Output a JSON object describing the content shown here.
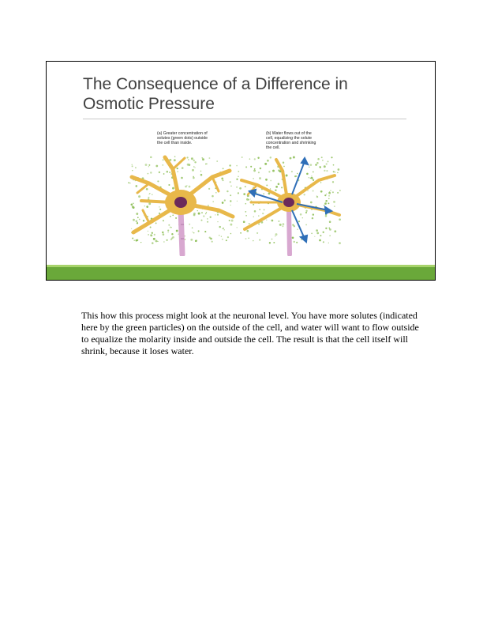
{
  "slide": {
    "title_line1": "The Consequence of a Difference in",
    "title_line2": "Osmotic Pressure",
    "caption_a": "(a) Greater concentration of\nsolutes (green dots) outside\nthe cell than inside.",
    "caption_b": "(b) Water flows out of the\ncell, equalizing the solute\nconcentration and shrinking\nthe cell.",
    "colors": {
      "title": "#404040",
      "accent_green": "#6aa83a",
      "accent_light_green": "#a7d36b",
      "neuron_body": "#e8b84a",
      "nucleus": "#6b2a5a",
      "solute_dots": "#8fbf5a",
      "arrow": "#2f6fb8"
    }
  },
  "notes": {
    "text": "This how this process might look at the neuronal level. You have more solutes (indicated here by the green particles) on the outside of the cell, and water will want to flow outside to equalize the molarity inside and outside the cell. The result is that the cell itself will shrink, because it loses water."
  }
}
